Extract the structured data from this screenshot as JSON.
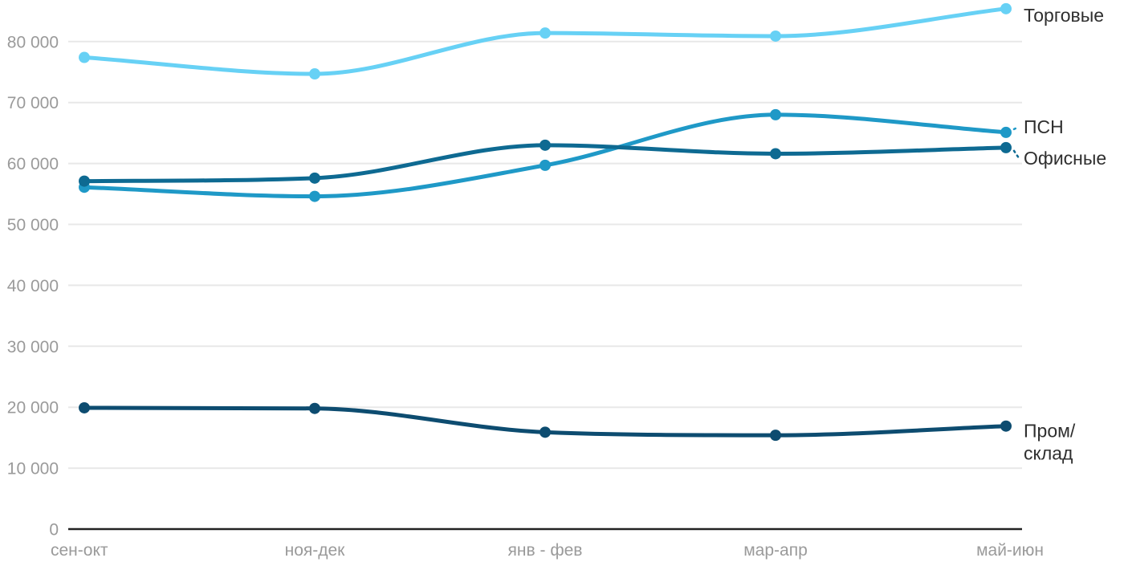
{
  "chart_data": {
    "type": "line",
    "title": "",
    "xlabel": "",
    "ylabel": "",
    "categories": [
      "сен-окт",
      "ноя-дек",
      "янв - фев",
      "мар-апр",
      "май-июн"
    ],
    "series": [
      {
        "name": "Торговые",
        "color": "#67d1f5",
        "values": [
          77400,
          74700,
          81400,
          80900,
          85400
        ],
        "label_lines": [
          "Торговые"
        ],
        "label_dy": 8,
        "connector": false
      },
      {
        "name": "ПСН",
        "color": "#1f99c7",
        "values": [
          56100,
          54600,
          59700,
          68000,
          65100
        ],
        "label_lines": [
          "ПСН"
        ],
        "label_dy": -7,
        "connector": true
      },
      {
        "name": "Офисные",
        "color": "#0e6a92",
        "values": [
          57100,
          57600,
          63000,
          61600,
          62600
        ],
        "label_lines": [
          "Офисные"
        ],
        "label_dy": 13,
        "connector": true
      },
      {
        "name": "Пром/склад",
        "color": "#0d4c70",
        "values": [
          19900,
          19800,
          15900,
          15400,
          16900
        ],
        "label_lines": [
          "Пром/",
          "склад"
        ],
        "label_dy": 6,
        "connector": false
      }
    ],
    "yticks": [
      0,
      10000,
      20000,
      30000,
      40000,
      50000,
      60000,
      70000,
      80000
    ],
    "ylim": [
      0,
      86800
    ],
    "grid": true,
    "legend_position": "right-end-labels",
    "tick_format": "space-thousands"
  },
  "styles": {
    "background": "#ffffff",
    "axis_text_color": "#9a9a9a",
    "series_label_color": "#2f2f2f",
    "grid_color": "#e8e8e8",
    "axis_line_color": "#222222"
  }
}
